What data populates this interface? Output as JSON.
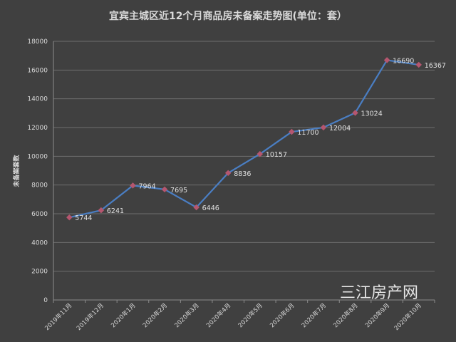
{
  "chart_data": {
    "type": "line",
    "title": "宜宾主城区近12个月商品房未备案走势图(单位：套）",
    "ylabel": "未备案套数",
    "xlabel": "",
    "categories": [
      "2019年11月",
      "2019年12月",
      "2020年1月",
      "2020年2月",
      "2020年3月",
      "2020年4月",
      "2020年5月",
      "2020年6月",
      "2020年7月",
      "2020年8月",
      "2020年9月",
      "2020年10月"
    ],
    "series": [
      {
        "values": [
          5744,
          6241,
          7964,
          7695,
          6446,
          8836,
          10157,
          11700,
          12004,
          13024,
          16690,
          16367
        ]
      }
    ],
    "ylim": [
      0,
      18000
    ],
    "yticks": [
      "0",
      "2000",
      "4000",
      "6000",
      "8000",
      "10000",
      "12000",
      "14000",
      "16000",
      "18000"
    ],
    "grid": true,
    "colors": {
      "line": "#4a7ec3",
      "marker": "#b5566f",
      "background": "#404040"
    }
  },
  "watermark": "三江房产网"
}
